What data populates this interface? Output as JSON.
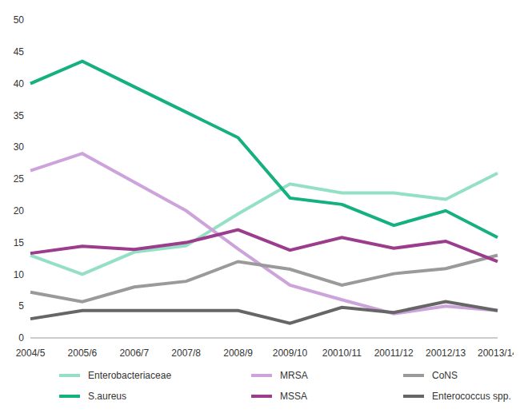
{
  "chart_data": {
    "type": "line",
    "categories": [
      "2004/5",
      "2005/6",
      "2006/7",
      "2007/8",
      "2008/9",
      "2009/10",
      "20010/11",
      "20011/12",
      "20012/13",
      "20013/14"
    ],
    "series": [
      {
        "name": "Enterobacteriaceae",
        "color": "#94e0c4",
        "values": [
          13,
          10,
          13.5,
          14.5,
          19.5,
          24.2,
          22.8,
          22.8,
          21.8,
          25.9
        ]
      },
      {
        "name": "MRSA",
        "color": "#cca3da",
        "values": [
          26.3,
          29,
          24.5,
          20,
          14,
          8.3,
          6,
          3.8,
          5,
          4.3
        ]
      },
      {
        "name": "CoNS",
        "color": "#9a9a9a",
        "values": [
          7.2,
          5.7,
          8,
          8.9,
          12,
          10.8,
          8.3,
          10.1,
          10.9,
          13
        ]
      },
      {
        "name": "S.aureus",
        "color": "#14b07f",
        "values": [
          40,
          43.5,
          39.5,
          35.5,
          31.5,
          22,
          21,
          17.7,
          20,
          15.8
        ]
      },
      {
        "name": "MSSA",
        "color": "#9b3c8c",
        "values": [
          13.3,
          14.4,
          13.9,
          15,
          17,
          13.8,
          15.8,
          14.1,
          15.2,
          12
        ]
      },
      {
        "name": "Enterococcus spp.",
        "color": "#666666",
        "values": [
          3,
          4.3,
          4.3,
          4.3,
          4.3,
          2.3,
          4.8,
          4,
          5.7,
          4.3
        ]
      }
    ],
    "ylim": [
      0,
      50
    ],
    "yticks": [
      0,
      5,
      10,
      15,
      20,
      25,
      30,
      35,
      40,
      45,
      50
    ],
    "grid": false,
    "legend": "bottom"
  }
}
